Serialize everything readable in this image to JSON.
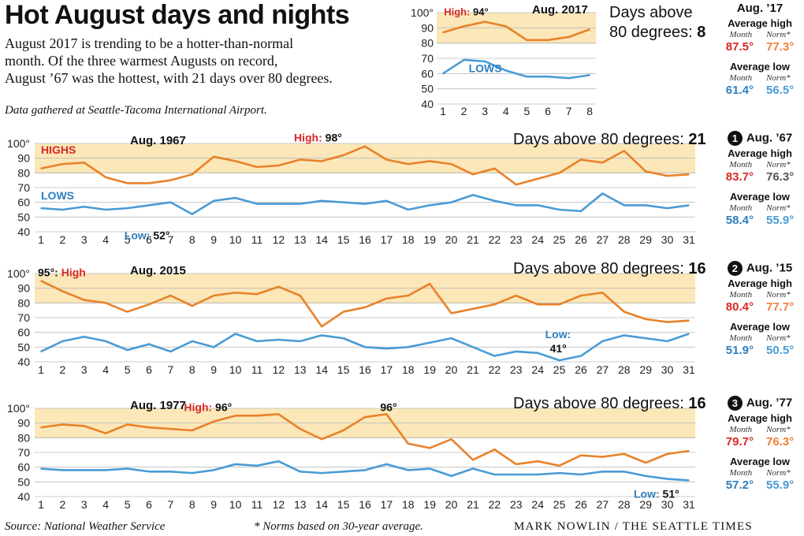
{
  "header": {
    "title": "Hot August days and nights",
    "intro_lines": [
      "August 2017 is trending to be a hotter-than-normal",
      "month. Of the three warmest Augusts on record,",
      "August ’67 was the hottest, with 21 days over 80 degrees."
    ],
    "note": "Data gathered at Seattle-Tacoma International Airport."
  },
  "footer": {
    "source": "Source: National Weather Service",
    "norms_note": "* Norms based on 30-year average.",
    "credit": "MARK NOWLIN / THE SEATTLE TIMES"
  },
  "colors": {
    "highs": "#e8822a",
    "lows": "#4a9bd4",
    "band": "#fbe7b8",
    "high_label": "#d62a25",
    "low_label": "#2e7fbf",
    "norm_orange": "#f07f3c",
    "month_red": "#d62a25",
    "norm_lows": "#4a9bd4",
    "grid": "#bbbbbb",
    "band_edge": "#d8c9a0",
    "norm_gray": "#555555"
  },
  "chart_data": [
    {
      "type": "line",
      "title": "Aug. 2017",
      "x": [
        1,
        2,
        3,
        4,
        5,
        6,
        7,
        8
      ],
      "series": [
        {
          "name": "",
          "values": [
            87,
            91,
            94,
            91,
            82,
            82,
            84,
            89
          ]
        },
        {
          "name": "LOWS",
          "values": [
            60,
            69,
            68,
            62,
            58,
            58,
            57,
            59
          ]
        }
      ],
      "ylim": [
        40,
        100
      ],
      "yticks": [
        "100°",
        "90",
        "80",
        "70",
        "60",
        "50",
        "40"
      ],
      "annotations": [
        {
          "prefix": "High:",
          "text": "94°",
          "x": 3
        },
        {
          "prefix": "",
          "text": "LOWS",
          "x": 3
        }
      ],
      "days_above_label": [
        "Days above",
        "80 degrees:"
      ],
      "days_above_80": "8",
      "side": {
        "header": "Aug. ’17",
        "rank": "",
        "avg_high_label": "Average high",
        "avg_low_label": "Average low",
        "month_label": "Month",
        "norm_label": "Norm*",
        "high_month": "87.5°",
        "high_norm": "77.3°",
        "low_month": "61.4°",
        "low_norm": "56.5°"
      }
    },
    {
      "type": "line",
      "title": "Aug. 1967",
      "x": [
        1,
        2,
        3,
        4,
        5,
        6,
        7,
        8,
        9,
        10,
        11,
        12,
        13,
        14,
        15,
        16,
        17,
        18,
        19,
        20,
        21,
        22,
        23,
        24,
        25,
        26,
        27,
        28,
        29,
        30,
        31
      ],
      "series": [
        {
          "name": "HIGHS",
          "values": [
            83,
            86,
            87,
            77,
            73,
            73,
            75,
            79,
            91,
            88,
            84,
            85,
            89,
            88,
            92,
            98,
            89,
            86,
            88,
            86,
            79,
            83,
            72,
            76,
            80,
            89,
            87,
            95,
            81,
            78,
            79
          ]
        },
        {
          "name": "LOWS",
          "values": [
            56,
            55,
            57,
            55,
            56,
            58,
            60,
            52,
            61,
            63,
            59,
            59,
            59,
            61,
            60,
            59,
            61,
            55,
            58,
            60,
            65,
            61,
            58,
            58,
            55,
            54,
            66,
            58,
            58,
            56,
            58
          ]
        }
      ],
      "ylim": [
        40,
        100
      ],
      "yticks": [
        "100°",
        "90",
        "80",
        "70",
        "60",
        "50",
        "40"
      ],
      "annotations": [
        {
          "prefix": "High:",
          "text": "98°",
          "x": 16
        },
        {
          "prefix": "Low:",
          "text": "52°",
          "x": 8
        }
      ],
      "days_above_label": [
        "Days above 80 degrees:"
      ],
      "days_above_80": "21",
      "side": {
        "header": "Aug. ’67",
        "rank": "1",
        "avg_high_label": "Average high",
        "avg_low_label": "Average low",
        "month_label": "Month",
        "norm_label": "Norm*",
        "high_month": "83.7°",
        "high_norm": "76.3°",
        "low_month": "58.4°",
        "low_norm": "55.9°"
      }
    },
    {
      "type": "line",
      "title": "Aug. 2015",
      "x": [
        1,
        2,
        3,
        4,
        5,
        6,
        7,
        8,
        9,
        10,
        11,
        12,
        13,
        14,
        15,
        16,
        17,
        18,
        19,
        20,
        21,
        22,
        23,
        24,
        25,
        26,
        27,
        28,
        29,
        30,
        31
      ],
      "series": [
        {
          "name": "",
          "values": [
            95,
            88,
            82,
            80,
            74,
            79,
            85,
            78,
            85,
            87,
            86,
            91,
            85,
            64,
            74,
            77,
            83,
            85,
            93,
            73,
            76,
            79,
            85,
            79,
            79,
            85,
            87,
            74,
            69,
            67,
            68
          ]
        },
        {
          "name": "",
          "values": [
            47,
            54,
            57,
            54,
            48,
            52,
            47,
            54,
            50,
            59,
            54,
            55,
            54,
            58,
            56,
            50,
            49,
            50,
            53,
            56,
            50,
            44,
            47,
            46,
            41,
            44,
            54,
            58,
            56,
            54,
            59
          ]
        }
      ],
      "ylim": [
        40,
        100
      ],
      "yticks": [
        "100°",
        "90",
        "80",
        "70",
        "60",
        "50",
        "40"
      ],
      "annotations": [
        {
          "prefix": "High",
          "text": "95°:",
          "x": 1
        },
        {
          "prefix": "Low:",
          "text": "41°",
          "x": 25
        }
      ],
      "days_above_label": [
        "Days above 80 degrees:"
      ],
      "days_above_80": "16",
      "side": {
        "header": "Aug. ’15",
        "rank": "2",
        "avg_high_label": "Average high",
        "avg_low_label": "Average low",
        "month_label": "Month",
        "norm_label": "Norm*",
        "high_month": "80.4°",
        "high_norm": "77.7°",
        "low_month": "51.9°",
        "low_norm": "50.5°"
      }
    },
    {
      "type": "line",
      "title": "Aug. 1977",
      "x": [
        1,
        2,
        3,
        4,
        5,
        6,
        7,
        8,
        9,
        10,
        11,
        12,
        13,
        14,
        15,
        16,
        17,
        18,
        19,
        20,
        21,
        22,
        23,
        24,
        25,
        26,
        27,
        28,
        29,
        30,
        31
      ],
      "series": [
        {
          "name": "",
          "values": [
            87,
            89,
            88,
            83,
            89,
            87,
            86,
            85,
            91,
            95,
            95,
            96,
            86,
            79,
            85,
            94,
            96,
            76,
            73,
            79,
            65,
            72,
            62,
            64,
            61,
            68,
            67,
            69,
            63,
            69,
            71
          ]
        },
        {
          "name": "",
          "values": [
            59,
            58,
            58,
            58,
            59,
            57,
            57,
            56,
            58,
            62,
            61,
            64,
            57,
            56,
            57,
            58,
            62,
            58,
            59,
            54,
            59,
            55,
            55,
            55,
            56,
            55,
            57,
            57,
            54,
            52,
            51
          ]
        }
      ],
      "ylim": [
        40,
        100
      ],
      "yticks": [
        "100°",
        "90",
        "80",
        "70",
        "60",
        "50",
        "40"
      ],
      "annotations": [
        {
          "prefix": "High:",
          "text": "96°",
          "x": 12
        },
        {
          "prefix": "",
          "text": "96°",
          "x": 17
        },
        {
          "prefix": "Low:",
          "text": "51°",
          "x": 31
        }
      ],
      "days_above_label": [
        "Days above 80 degrees:"
      ],
      "days_above_80": "16",
      "side": {
        "header": "Aug. ’77",
        "rank": "3",
        "avg_high_label": "Average high",
        "avg_low_label": "Average low",
        "month_label": "Month",
        "norm_label": "Norm*",
        "high_month": "79.7°",
        "high_norm": "76.3°",
        "low_month": "57.2°",
        "low_norm": "55.9°"
      }
    }
  ]
}
